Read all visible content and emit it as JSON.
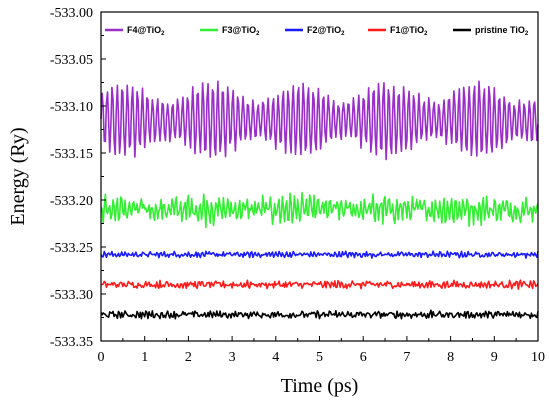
{
  "chart_data": {
    "type": "line",
    "title": "",
    "xlabel": "Time (ps)",
    "ylabel": "Energy (Ry)",
    "xlim": [
      0,
      10
    ],
    "ylim": [
      -533.35,
      -533.0
    ],
    "xticks": [
      "0",
      "1",
      "2",
      "3",
      "4",
      "5",
      "6",
      "7",
      "8",
      "9",
      "10"
    ],
    "yticks": [
      "-533.00",
      "-533.05",
      "-533.10",
      "-533.15",
      "-533.20",
      "-533.25",
      "-533.30",
      "-533.35"
    ],
    "ytick_values": [
      -533.0,
      -533.05,
      -533.1,
      -533.15,
      -533.2,
      -533.25,
      -533.3,
      -533.35
    ],
    "grid": false,
    "legend_position": "top",
    "x_step": 0.025,
    "series": [
      {
        "name": "F4@TiO",
        "name_sub": "2",
        "color": "#9a2fc7",
        "mean": -533.115,
        "amplitude": 0.04,
        "noise": 0.004,
        "period": 0.115
      },
      {
        "name": "F3@TiO",
        "name_sub": "2",
        "color": "#33ee33",
        "mean": -533.21,
        "amplitude": 0.012,
        "noise": 0.008,
        "period": 0.09
      },
      {
        "name": "F2@TiO",
        "name_sub": "2",
        "color": "#1a1aff",
        "mean": -533.258,
        "amplitude": 0.002,
        "noise": 0.002,
        "period": 0.08
      },
      {
        "name": "F1@TiO",
        "name_sub": "2",
        "color": "#ff1a1a",
        "mean": -533.29,
        "amplitude": 0.002,
        "noise": 0.003,
        "period": 0.08
      },
      {
        "name": "pristine TiO",
        "name_sub": "2",
        "color": "#000000",
        "mean": -533.322,
        "amplitude": 0.002,
        "noise": 0.003,
        "period": 0.07
      }
    ]
  }
}
